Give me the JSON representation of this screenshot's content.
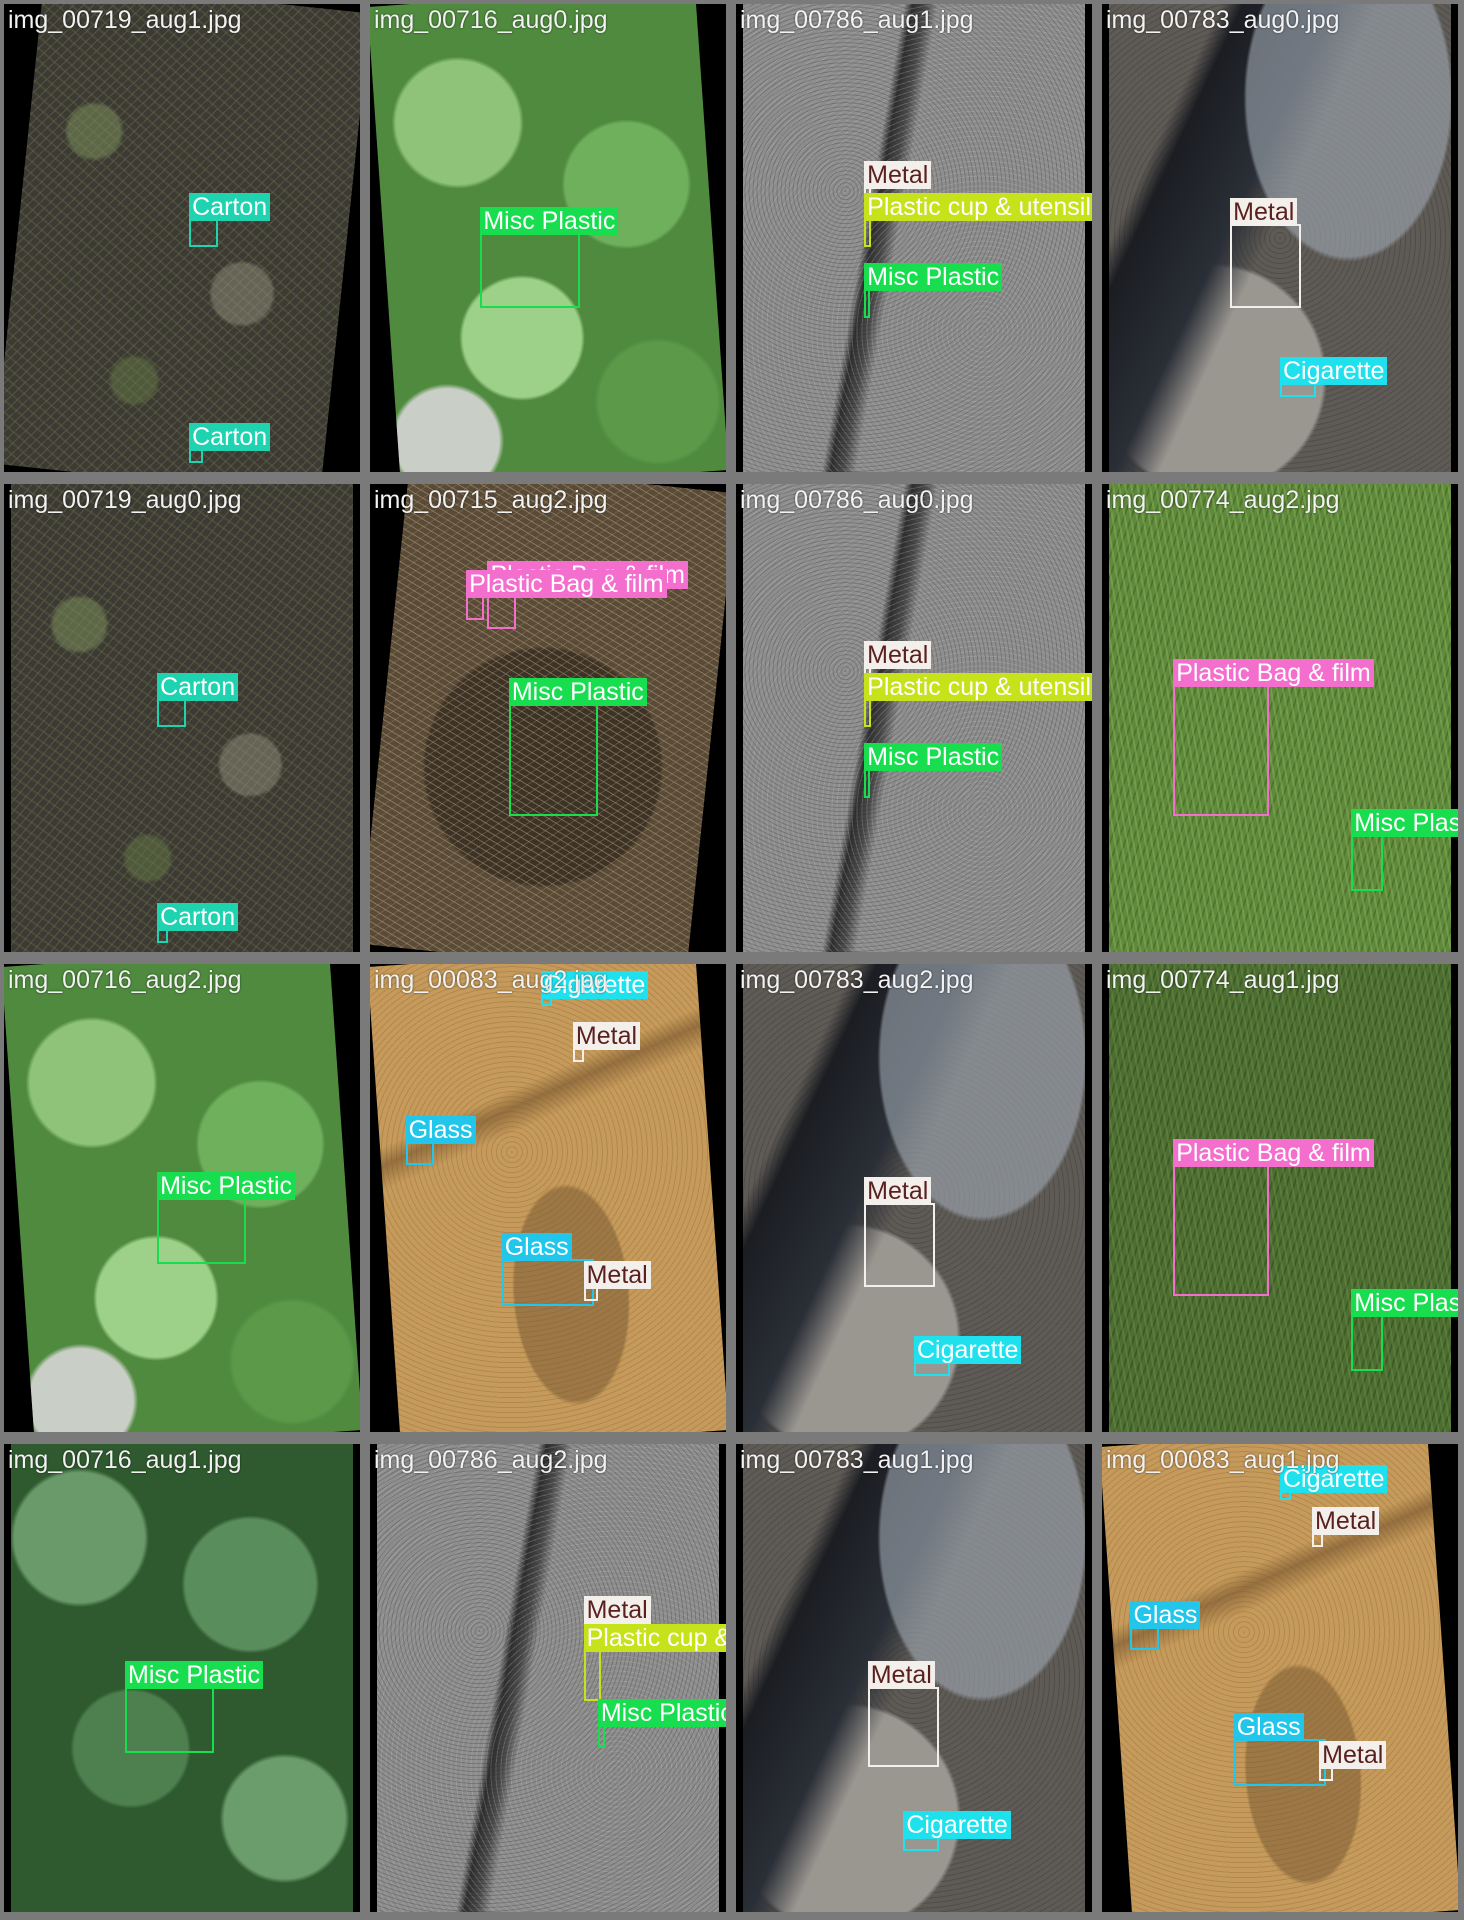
{
  "palette": {
    "background": "#7a7a7a",
    "classes": {
      "Carton": "#1fd3b0",
      "Misc Plastic": "#18de4f",
      "Metal": "#f3f0ec",
      "Plastic cup & utensil": "#c6e21a",
      "Cigarette": "#1fe1ee",
      "Plastic Bag & film": "#f46fcd",
      "Glass": "#21c6ea"
    }
  },
  "tiles": [
    {
      "name": "img_00719_aug1.jpg",
      "texture": "soil",
      "detections": [
        {
          "label": "Carton",
          "color": "#1fd3b0",
          "box": {
            "l": 0.52,
            "t": 0.46,
            "w": 0.08,
            "h": 0.06
          }
        },
        {
          "label": "Carton",
          "color": "#1fd3b0",
          "box": {
            "l": 0.52,
            "t": 0.95,
            "w": 0.04,
            "h": 0.03
          }
        }
      ]
    },
    {
      "name": "img_00716_aug0.jpg",
      "texture": "leaves",
      "detections": [
        {
          "label": "Misc Plastic",
          "color": "#18de4f",
          "box": {
            "l": 0.31,
            "t": 0.49,
            "w": 0.28,
            "h": 0.16
          }
        }
      ]
    },
    {
      "name": "img_00786_aug1.jpg",
      "texture": "asphalt",
      "detections": [
        {
          "label": "Metal",
          "color": "#f3f0ec",
          "dark": true,
          "box": {
            "l": 0.36,
            "t": 0.39,
            "w": 0.02,
            "h": 0.03
          }
        },
        {
          "label": "Plastic cup & utensil",
          "color": "#c6e21a",
          "box": {
            "l": 0.36,
            "t": 0.46,
            "w": 0.02,
            "h": 0.06
          }
        },
        {
          "label": "Misc Plastic",
          "color": "#18de4f",
          "box": {
            "l": 0.36,
            "t": 0.61,
            "w": 0.015,
            "h": 0.06
          }
        }
      ]
    },
    {
      "name": "img_00783_aug0.jpg",
      "texture": "wet",
      "detections": [
        {
          "label": "Metal",
          "color": "#f3f0ec",
          "dark": true,
          "box": {
            "l": 0.36,
            "t": 0.47,
            "w": 0.2,
            "h": 0.18
          }
        },
        {
          "label": "Cigarette",
          "color": "#1fe1ee",
          "box": {
            "l": 0.5,
            "t": 0.81,
            "w": 0.1,
            "h": 0.03
          }
        }
      ]
    },
    {
      "name": "img_00719_aug0.jpg",
      "texture": "soil",
      "detections": [
        {
          "label": "Carton",
          "color": "#1fd3b0",
          "box": {
            "l": 0.43,
            "t": 0.46,
            "w": 0.08,
            "h": 0.06
          }
        },
        {
          "label": "Carton",
          "color": "#1fd3b0",
          "box": {
            "l": 0.43,
            "t": 0.95,
            "w": 0.03,
            "h": 0.03
          }
        }
      ]
    },
    {
      "name": "img_00715_aug2.jpg",
      "texture": "litter",
      "detections": [
        {
          "label": "Plastic Bag & film",
          "color": "#f46fcd",
          "box": {
            "l": 0.33,
            "t": 0.22,
            "w": 0.08,
            "h": 0.09
          }
        },
        {
          "label": "Plastic Bag & film",
          "color": "#f46fcd",
          "box": {
            "l": 0.27,
            "t": 0.24,
            "w": 0.05,
            "h": 0.05
          }
        },
        {
          "label": "Misc Plastic",
          "color": "#18de4f",
          "box": {
            "l": 0.39,
            "t": 0.47,
            "w": 0.25,
            "h": 0.24
          }
        }
      ]
    },
    {
      "name": "img_00786_aug0.jpg",
      "texture": "asphalt",
      "detections": [
        {
          "label": "Metal",
          "color": "#f3f0ec",
          "dark": true,
          "box": {
            "l": 0.36,
            "t": 0.39,
            "w": 0.02,
            "h": 0.03
          }
        },
        {
          "label": "Plastic cup & utensil",
          "color": "#c6e21a",
          "box": {
            "l": 0.36,
            "t": 0.46,
            "w": 0.02,
            "h": 0.06
          }
        },
        {
          "label": "Misc Plastic",
          "color": "#18de4f",
          "box": {
            "l": 0.36,
            "t": 0.61,
            "w": 0.015,
            "h": 0.06
          }
        }
      ]
    },
    {
      "name": "img_00774_aug2.jpg",
      "texture": "grass",
      "detections": [
        {
          "label": "Plastic Bag & film",
          "color": "#f46fcd",
          "box": {
            "l": 0.2,
            "t": 0.43,
            "w": 0.27,
            "h": 0.28
          }
        },
        {
          "label": "Misc Plastic",
          "color": "#18de4f",
          "box": {
            "l": 0.7,
            "t": 0.75,
            "w": 0.09,
            "h": 0.12
          }
        }
      ]
    },
    {
      "name": "img_00716_aug2.jpg",
      "texture": "leaves-pale",
      "detections": [
        {
          "label": "Misc Plastic",
          "color": "#18de4f",
          "box": {
            "l": 0.43,
            "t": 0.5,
            "w": 0.25,
            "h": 0.14
          }
        }
      ]
    },
    {
      "name": "img_00083_aug2.jpg",
      "texture": "sand",
      "detections": [
        {
          "label": "Cigarette",
          "color": "#1fe1ee",
          "box": {
            "l": 0.48,
            "t": 0.07,
            "w": 0.03,
            "h": 0.02
          }
        },
        {
          "label": "Metal",
          "color": "#f3f0ec",
          "dark": true,
          "box": {
            "l": 0.57,
            "t": 0.18,
            "w": 0.03,
            "h": 0.03
          }
        },
        {
          "label": "Glass",
          "color": "#21c6ea",
          "box": {
            "l": 0.1,
            "t": 0.38,
            "w": 0.08,
            "h": 0.05
          }
        },
        {
          "label": "Glass",
          "color": "#21c6ea",
          "box": {
            "l": 0.37,
            "t": 0.63,
            "w": 0.26,
            "h": 0.1
          }
        },
        {
          "label": "Metal",
          "color": "#f3f0ec",
          "dark": true,
          "box": {
            "l": 0.6,
            "t": 0.69,
            "w": 0.04,
            "h": 0.03
          }
        }
      ]
    },
    {
      "name": "img_00783_aug2.jpg",
      "texture": "wet",
      "detections": [
        {
          "label": "Metal",
          "color": "#f3f0ec",
          "dark": true,
          "box": {
            "l": 0.36,
            "t": 0.51,
            "w": 0.2,
            "h": 0.18
          }
        },
        {
          "label": "Cigarette",
          "color": "#1fe1ee",
          "box": {
            "l": 0.5,
            "t": 0.85,
            "w": 0.1,
            "h": 0.03
          }
        }
      ]
    },
    {
      "name": "img_00774_aug1.jpg",
      "texture": "grass-dim",
      "detections": [
        {
          "label": "Plastic Bag & film",
          "color": "#f46fcd",
          "box": {
            "l": 0.2,
            "t": 0.43,
            "w": 0.27,
            "h": 0.28
          }
        },
        {
          "label": "Misc Plastic",
          "color": "#18de4f",
          "box": {
            "l": 0.7,
            "t": 0.75,
            "w": 0.09,
            "h": 0.12
          }
        }
      ]
    },
    {
      "name": "img_00716_aug1.jpg",
      "texture": "leaves-dark",
      "detections": [
        {
          "label": "Misc Plastic",
          "color": "#18de4f",
          "box": {
            "l": 0.34,
            "t": 0.52,
            "w": 0.25,
            "h": 0.14
          }
        }
      ]
    },
    {
      "name": "img_00786_aug2.jpg",
      "texture": "asphalt",
      "detections": [
        {
          "label": "Metal",
          "color": "#f3f0ec",
          "dark": true,
          "box": {
            "l": 0.6,
            "t": 0.38,
            "w": 0.02,
            "h": 0.03
          }
        },
        {
          "label": "Plastic cup & utensil",
          "color": "#c6e21a",
          "box": {
            "l": 0.6,
            "t": 0.44,
            "w": 0.05,
            "h": 0.11
          }
        },
        {
          "label": "Misc Plastic",
          "color": "#18de4f",
          "box": {
            "l": 0.64,
            "t": 0.6,
            "w": 0.02,
            "h": 0.05
          }
        }
      ]
    },
    {
      "name": "img_00783_aug1.jpg",
      "texture": "wet",
      "detections": [
        {
          "label": "Metal",
          "color": "#f3f0ec",
          "dark": true,
          "box": {
            "l": 0.37,
            "t": 0.52,
            "w": 0.2,
            "h": 0.17
          }
        },
        {
          "label": "Cigarette",
          "color": "#1fe1ee",
          "box": {
            "l": 0.47,
            "t": 0.84,
            "w": 0.1,
            "h": 0.03
          }
        }
      ]
    },
    {
      "name": "img_00083_aug1.jpg",
      "texture": "sand",
      "detections": [
        {
          "label": "Cigarette",
          "color": "#1fe1ee",
          "box": {
            "l": 0.5,
            "t": 0.1,
            "w": 0.03,
            "h": 0.02
          }
        },
        {
          "label": "Metal",
          "color": "#f3f0ec",
          "dark": true,
          "box": {
            "l": 0.59,
            "t": 0.19,
            "w": 0.03,
            "h": 0.03
          }
        },
        {
          "label": "Glass",
          "color": "#21c6ea",
          "box": {
            "l": 0.08,
            "t": 0.39,
            "w": 0.08,
            "h": 0.05
          }
        },
        {
          "label": "Glass",
          "color": "#21c6ea",
          "box": {
            "l": 0.37,
            "t": 0.63,
            "w": 0.26,
            "h": 0.1
          }
        },
        {
          "label": "Metal",
          "color": "#f3f0ec",
          "dark": true,
          "box": {
            "l": 0.61,
            "t": 0.69,
            "w": 0.04,
            "h": 0.03
          }
        }
      ]
    }
  ]
}
